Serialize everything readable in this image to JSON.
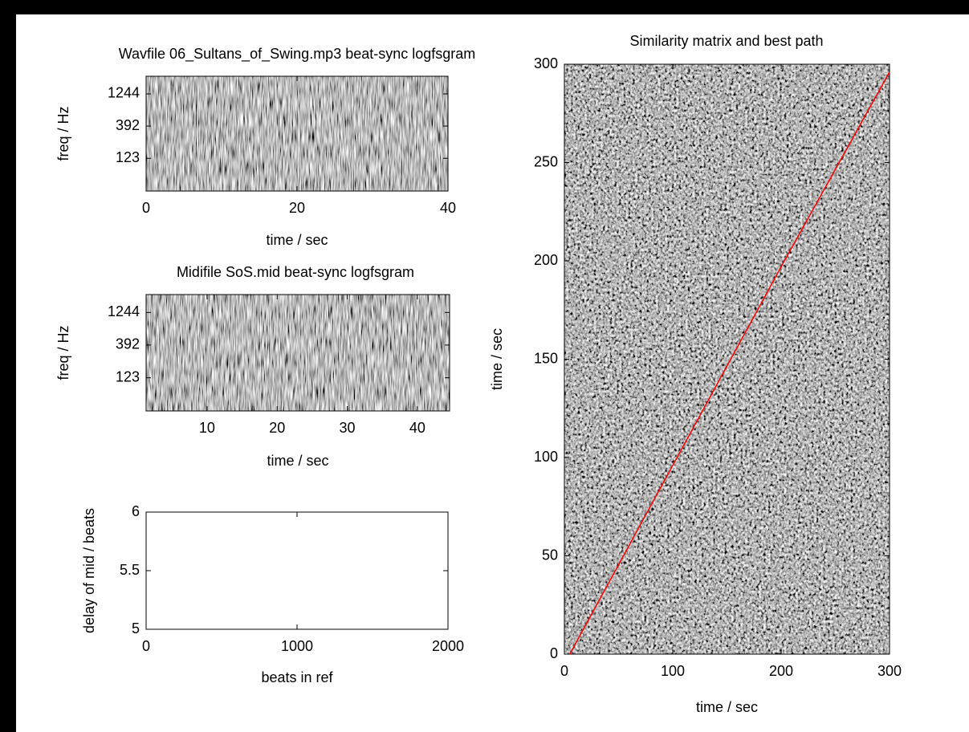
{
  "chart_data": [
    {
      "type": "heatmap",
      "title": "Wavfile 06_Sultans_of_Swing.mp3 beat-sync logfsgram",
      "x_label": "time / sec",
      "y_label": "freq / Hz",
      "xlim": [
        0,
        40
      ],
      "xticks": [
        0,
        20,
        40
      ],
      "ylim": [
        38,
        2344
      ],
      "yscale": "log",
      "yticks": [
        123,
        392,
        1244
      ]
    },
    {
      "type": "heatmap",
      "title": "Midifile SoS.mid beat-sync logfsgram",
      "x_label": "time / sec",
      "y_label": "freq / Hz",
      "xlim": [
        1.3,
        44.6
      ],
      "xticks": [
        10,
        20,
        30,
        40
      ],
      "ylim": [
        38,
        2344
      ],
      "yscale": "log",
      "yticks": [
        123,
        392,
        1244
      ]
    },
    {
      "type": "line",
      "x_label": "beats in ref",
      "y_label": "delay of mid / beats",
      "xlim": [
        0,
        2000
      ],
      "xticks": [
        0,
        1000,
        2000
      ],
      "ylim": [
        5,
        6
      ],
      "yticks": [
        5,
        5.5,
        6
      ]
    },
    {
      "type": "heatmap",
      "title": "Similarity matrix and best path",
      "x_label": "time / sec",
      "y_label": "time / sec",
      "xlim": [
        0,
        300
      ],
      "xticks": [
        0,
        100,
        200,
        300
      ],
      "ylim": [
        0,
        300
      ],
      "yticks": [
        0,
        50,
        100,
        150,
        200,
        250,
        300
      ],
      "x": [
        5,
        100,
        200,
        300
      ],
      "series": [
        {
          "color": "#ff0000",
          "values": [
            0,
            96,
            197,
            296
          ]
        }
      ]
    }
  ]
}
